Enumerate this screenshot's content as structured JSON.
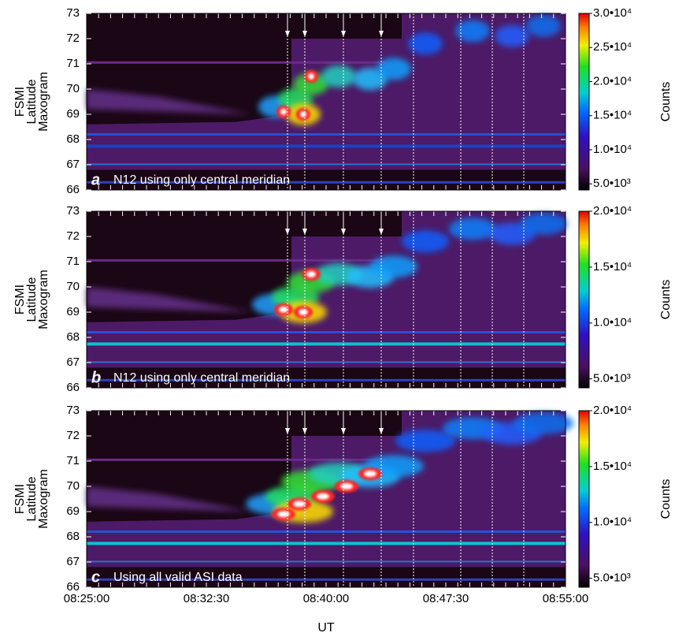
{
  "chart_data": [
    {
      "type": "heatmap",
      "panel": "a",
      "annotation": "N12 using only central meridian",
      "ylabel": [
        "FSMI",
        "Latitude",
        "Maxogram"
      ],
      "ylim": [
        66,
        73
      ],
      "yticks": [
        66,
        67,
        68,
        69,
        70,
        71,
        72,
        73
      ],
      "colorbar": {
        "label": "Counts",
        "lim": [
          4100,
          30000
        ],
        "ticks": [
          {
            "value": 5000,
            "label": "5.0•10³"
          },
          {
            "value": 10000,
            "label": "1.0•10⁴"
          },
          {
            "value": 15000,
            "label": "1.5•10⁴"
          },
          {
            "value": 20000,
            "label": "2.0•10⁴"
          },
          {
            "value": 25000,
            "label": "2.5•10⁴"
          },
          {
            "value": 30000,
            "label": "3.0•10⁴"
          }
        ]
      }
    },
    {
      "type": "heatmap",
      "panel": "b",
      "annotation": "N12 using only central meridian",
      "ylabel": [
        "FSMI",
        "Latitude",
        "Maxogram"
      ],
      "ylim": [
        66,
        73
      ],
      "yticks": [
        66,
        67,
        68,
        69,
        70,
        71,
        72,
        73
      ],
      "colorbar": {
        "label": "Counts",
        "lim": [
          4200,
          20000
        ],
        "ticks": [
          {
            "value": 5000,
            "label": "5.0•10³"
          },
          {
            "value": 10000,
            "label": "1.0•10⁴"
          },
          {
            "value": 15000,
            "label": "1.5•10⁴"
          },
          {
            "value": 20000,
            "label": "2.0•10⁴"
          }
        ]
      }
    },
    {
      "type": "heatmap",
      "panel": "c",
      "annotation": "Using all valid ASI data",
      "ylabel": [
        "FSMI",
        "Latitude",
        "Maxogram"
      ],
      "ylim": [
        66,
        73
      ],
      "yticks": [
        66,
        67,
        68,
        69,
        70,
        71,
        72,
        73
      ],
      "colorbar": {
        "label": "Counts",
        "lim": [
          4200,
          20000
        ],
        "ticks": [
          {
            "value": 5000,
            "label": "5.0•10³"
          },
          {
            "value": 10000,
            "label": "1.0•10⁴"
          },
          {
            "value": 15000,
            "label": "1.5•10⁴"
          },
          {
            "value": 20000,
            "label": "2.0•10⁴"
          }
        ]
      },
      "xlabel": "UT",
      "xticks": [
        "08:25:00",
        "08:32:30",
        "08:40:00",
        "08:47:30",
        "08:55:00"
      ]
    }
  ]
}
